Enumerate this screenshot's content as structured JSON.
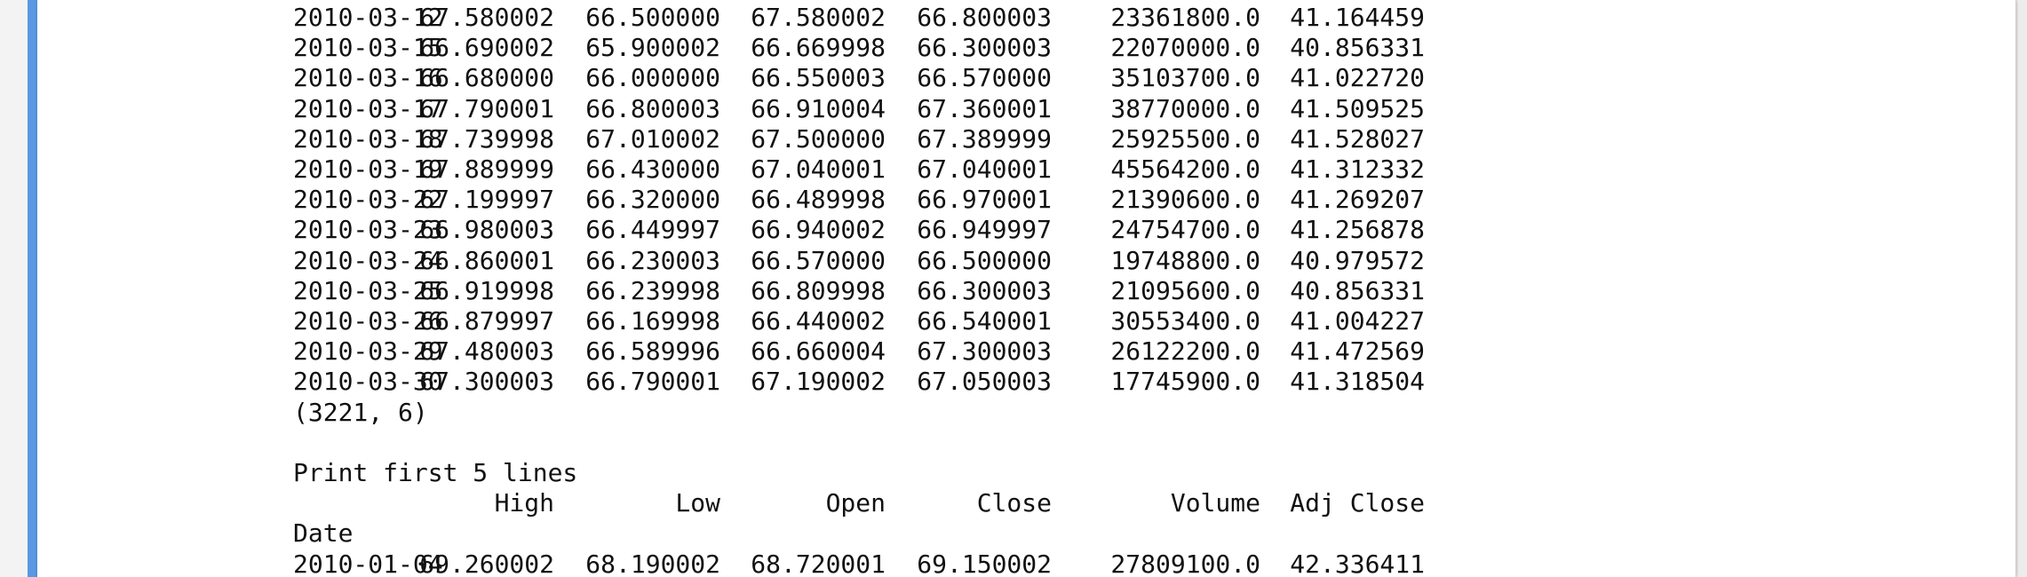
{
  "colors": {
    "accent": "#5a98e3",
    "panel_bg": "#ffffff",
    "text": "#111111"
  },
  "rows": [
    {
      "date": "2010-03-12",
      "high": "67.580002",
      "low": "66.500000",
      "open": "67.580002",
      "close": "66.800003",
      "volume": "23361800.0",
      "adj_close": "41.164459"
    },
    {
      "date": "2010-03-15",
      "high": "66.690002",
      "low": "65.900002",
      "open": "66.669998",
      "close": "66.300003",
      "volume": "22070000.0",
      "adj_close": "40.856331"
    },
    {
      "date": "2010-03-16",
      "high": "66.680000",
      "low": "66.000000",
      "open": "66.550003",
      "close": "66.570000",
      "volume": "35103700.0",
      "adj_close": "41.022720"
    },
    {
      "date": "2010-03-17",
      "high": "67.790001",
      "low": "66.800003",
      "open": "66.910004",
      "close": "67.360001",
      "volume": "38770000.0",
      "adj_close": "41.509525"
    },
    {
      "date": "2010-03-18",
      "high": "67.739998",
      "low": "67.010002",
      "open": "67.500000",
      "close": "67.389999",
      "volume": "25925500.0",
      "adj_close": "41.528027"
    },
    {
      "date": "2010-03-19",
      "high": "67.889999",
      "low": "66.430000",
      "open": "67.040001",
      "close": "67.040001",
      "volume": "45564200.0",
      "adj_close": "41.312332"
    },
    {
      "date": "2010-03-22",
      "high": "67.199997",
      "low": "66.320000",
      "open": "66.489998",
      "close": "66.970001",
      "volume": "21390600.0",
      "adj_close": "41.269207"
    },
    {
      "date": "2010-03-23",
      "high": "66.980003",
      "low": "66.449997",
      "open": "66.940002",
      "close": "66.949997",
      "volume": "24754700.0",
      "adj_close": "41.256878"
    },
    {
      "date": "2010-03-24",
      "high": "66.860001",
      "low": "66.230003",
      "open": "66.570000",
      "close": "66.500000",
      "volume": "19748800.0",
      "adj_close": "40.979572"
    },
    {
      "date": "2010-03-25",
      "high": "66.919998",
      "low": "66.239998",
      "open": "66.809998",
      "close": "66.300003",
      "volume": "21095600.0",
      "adj_close": "40.856331"
    },
    {
      "date": "2010-03-26",
      "high": "66.879997",
      "low": "66.169998",
      "open": "66.440002",
      "close": "66.540001",
      "volume": "30553400.0",
      "adj_close": "41.004227"
    },
    {
      "date": "2010-03-29",
      "high": "67.480003",
      "low": "66.589996",
      "open": "66.660004",
      "close": "67.300003",
      "volume": "26122200.0",
      "adj_close": "41.472569"
    },
    {
      "date": "2010-03-30",
      "high": "67.300003",
      "low": "66.790001",
      "open": "67.190002",
      "close": "67.050003",
      "volume": "17745900.0",
      "adj_close": "41.318504"
    }
  ],
  "shape_text": "(3221, 6)",
  "section_label": "Print first 5 lines",
  "headers": {
    "high": "High",
    "low": "Low",
    "open": "Open",
    "close": "Close",
    "volume": "Volume",
    "adj_close": "Adj Close"
  },
  "index_label": "Date",
  "first_rows": [
    {
      "date": "2010-01-04",
      "high": "69.260002",
      "low": "68.190002",
      "open": "68.720001",
      "close": "69.150002",
      "volume": "27809100.0",
      "adj_close": "42.336411"
    }
  ]
}
